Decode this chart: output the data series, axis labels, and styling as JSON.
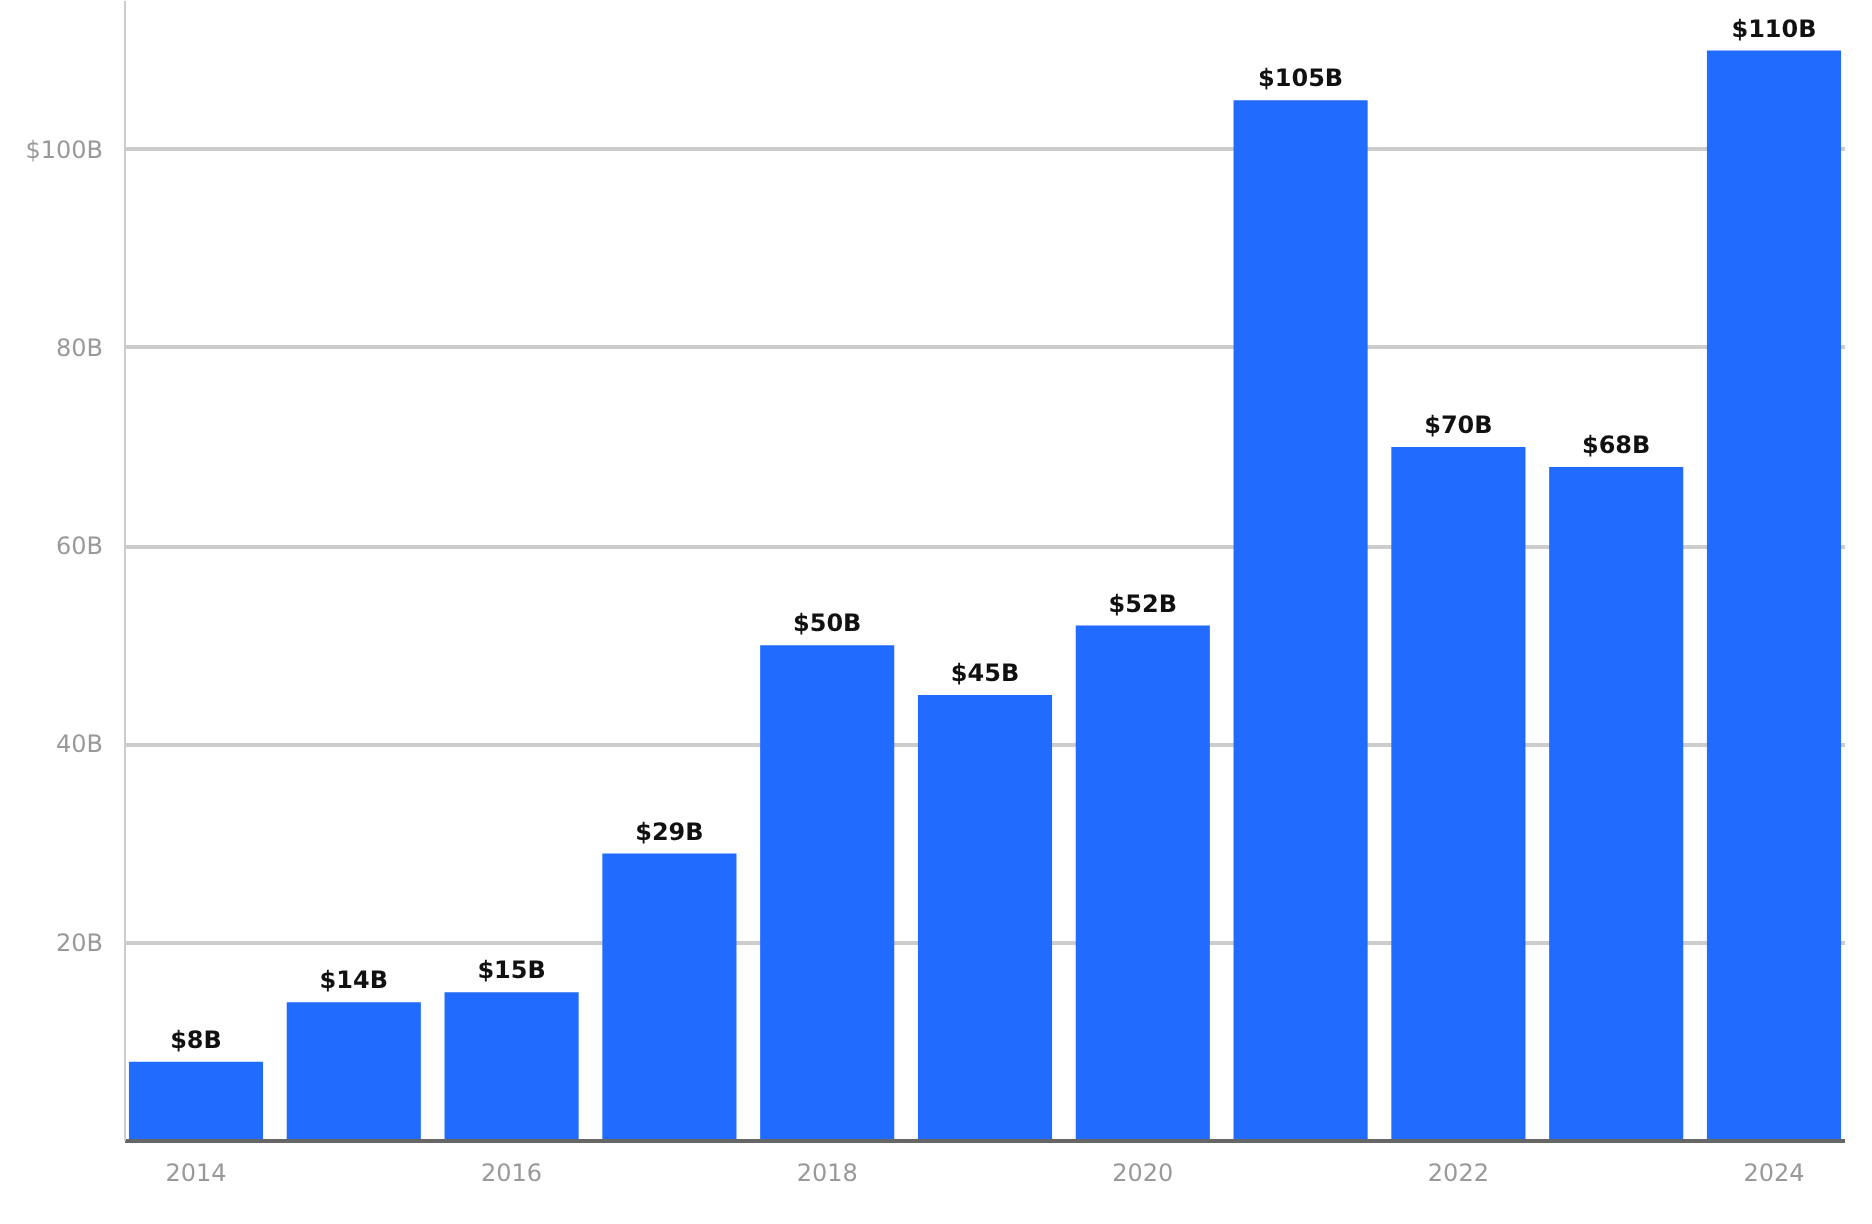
{
  "chart_data": {
    "type": "bar",
    "x": [
      2014,
      2015,
      2016,
      2017,
      2018,
      2019,
      2020,
      2021,
      2022,
      2023,
      2024
    ],
    "values": [
      8,
      14,
      15,
      29,
      50,
      45,
      52,
      105,
      70,
      68,
      110
    ],
    "value_labels": [
      "$8B",
      "$14B",
      "$15B",
      "$29B",
      "$50B",
      "$45B",
      "$52B",
      "$105B",
      "$70B",
      "$68B",
      "$110B"
    ],
    "color": "#226bff",
    "xlim": [
      2013.55,
      2024.45
    ],
    "xticks": [
      2014,
      2016,
      2018,
      2020,
      2022,
      2024
    ],
    "ylim": [
      0,
      115
    ],
    "yticks": [
      {
        "value": 20,
        "label": "20B"
      },
      {
        "value": 40,
        "label": "40B"
      },
      {
        "value": 60,
        "label": "60B"
      },
      {
        "value": 80,
        "label": "80B"
      },
      {
        "value": 100,
        "label": "$100B"
      }
    ],
    "grid": "y"
  }
}
